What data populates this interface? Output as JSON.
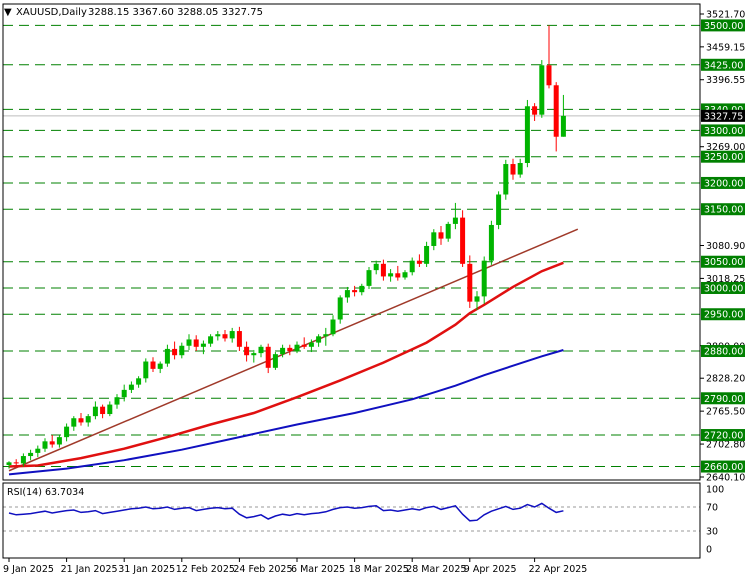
{
  "header": {
    "symbol": "XAUUSD,Daily",
    "ohlc": "3288.15 3367.60 3288.05 3327.75"
  },
  "colors": {
    "up": "#00b400",
    "down": "#ff0000",
    "ma_fast": "#e01010",
    "ma_slow": "#1010c0",
    "trend": "#a03a2a",
    "level": "#008000",
    "rsi": "#1010c0",
    "grid": "#000000",
    "current_price_bg": "#000000"
  },
  "chart_data": {
    "type": "candlestick",
    "y_range": [
      2640.1,
      3521.7
    ],
    "price_ticks": [
      {
        "value": 3521.7,
        "label": "3521.70"
      },
      {
        "value": 3459.15,
        "label": "3459.15"
      },
      {
        "value": 3396.55,
        "label": "3396.55"
      },
      {
        "value": 3269.0,
        "label": "3269.00"
      },
      {
        "value": 3080.9,
        "label": "3080.90"
      },
      {
        "value": 3018.25,
        "label": "3018.25"
      },
      {
        "value": 2890.0,
        "label": "2890.00"
      },
      {
        "value": 2828.2,
        "label": "2828.20"
      },
      {
        "value": 2765.5,
        "label": "2765.50"
      },
      {
        "value": 2702.8,
        "label": "2702.80"
      },
      {
        "value": 2640.1,
        "label": "2640.10"
      }
    ],
    "levels": [
      {
        "value": 3500,
        "label": "3500.00"
      },
      {
        "value": 3425,
        "label": "3425.00"
      },
      {
        "value": 3340,
        "label": "3340.00"
      },
      {
        "value": 3300,
        "label": "3300.00"
      },
      {
        "value": 3250,
        "label": "3250.00"
      },
      {
        "value": 3200,
        "label": "3200.00"
      },
      {
        "value": 3150,
        "label": "3150.00"
      },
      {
        "value": 3050,
        "label": "3050.00"
      },
      {
        "value": 3000,
        "label": "3000.00"
      },
      {
        "value": 2950,
        "label": "2950.00"
      },
      {
        "value": 2880,
        "label": "2880.00"
      },
      {
        "value": 2790,
        "label": "2790.00"
      },
      {
        "value": 2720,
        "label": "2720.00"
      },
      {
        "value": 2660,
        "label": "2660.00"
      }
    ],
    "current_price": {
      "value": 3327.75,
      "label": "3327.75"
    },
    "x_labels": [
      "9 Jan 2025",
      "21 Jan 2025",
      "31 Jan 2025",
      "12 Feb 2025",
      "24 Feb 2025",
      "6 Mar 2025",
      "18 Mar 2025",
      "28 Mar 2025",
      "9 Apr 2025",
      "22 Apr 2025"
    ],
    "x_label_index": [
      0,
      8,
      16,
      24,
      32,
      40,
      48,
      56,
      64,
      73
    ],
    "candles": [
      [
        2663,
        2670,
        2656,
        2668
      ],
      [
        2668,
        2674,
        2662,
        2666
      ],
      [
        2666,
        2685,
        2660,
        2680
      ],
      [
        2680,
        2692,
        2672,
        2686
      ],
      [
        2686,
        2700,
        2678,
        2694
      ],
      [
        2694,
        2714,
        2688,
        2708
      ],
      [
        2708,
        2720,
        2696,
        2702
      ],
      [
        2702,
        2720,
        2696,
        2716
      ],
      [
        2716,
        2742,
        2708,
        2736
      ],
      [
        2736,
        2756,
        2728,
        2752
      ],
      [
        2752,
        2762,
        2738,
        2744
      ],
      [
        2744,
        2760,
        2736,
        2756
      ],
      [
        2756,
        2784,
        2750,
        2774
      ],
      [
        2774,
        2778,
        2752,
        2760
      ],
      [
        2760,
        2784,
        2756,
        2778
      ],
      [
        2778,
        2798,
        2770,
        2792
      ],
      [
        2792,
        2816,
        2784,
        2806
      ],
      [
        2806,
        2822,
        2800,
        2816
      ],
      [
        2816,
        2832,
        2810,
        2828
      ],
      [
        2828,
        2866,
        2820,
        2860
      ],
      [
        2860,
        2868,
        2840,
        2846
      ],
      [
        2846,
        2860,
        2838,
        2856
      ],
      [
        2856,
        2892,
        2850,
        2884
      ],
      [
        2884,
        2898,
        2864,
        2872
      ],
      [
        2872,
        2896,
        2866,
        2890
      ],
      [
        2890,
        2912,
        2882,
        2902
      ],
      [
        2902,
        2910,
        2880,
        2888
      ],
      [
        2888,
        2900,
        2874,
        2894
      ],
      [
        2894,
        2912,
        2888,
        2908
      ],
      [
        2908,
        2918,
        2900,
        2912
      ],
      [
        2912,
        2920,
        2898,
        2904
      ],
      [
        2904,
        2924,
        2896,
        2918
      ],
      [
        2918,
        2926,
        2880,
        2888
      ],
      [
        2888,
        2898,
        2860,
        2872
      ],
      [
        2872,
        2882,
        2858,
        2876
      ],
      [
        2876,
        2892,
        2868,
        2888
      ],
      [
        2888,
        2894,
        2838,
        2848
      ],
      [
        2848,
        2878,
        2844,
        2874
      ],
      [
        2874,
        2892,
        2868,
        2886
      ],
      [
        2886,
        2892,
        2872,
        2880
      ],
      [
        2880,
        2898,
        2876,
        2892
      ],
      [
        2892,
        2906,
        2884,
        2888
      ],
      [
        2888,
        2902,
        2878,
        2896
      ],
      [
        2896,
        2912,
        2888,
        2908
      ],
      [
        2908,
        2924,
        2890,
        2912
      ],
      [
        2912,
        2948,
        2908,
        2940
      ],
      [
        2940,
        2986,
        2932,
        2982
      ],
      [
        2982,
        3002,
        2972,
        2996
      ],
      [
        2996,
        3004,
        2984,
        2992
      ],
      [
        2992,
        3008,
        2986,
        3004
      ],
      [
        3004,
        3040,
        2998,
        3034
      ],
      [
        3034,
        3052,
        3026,
        3046
      ],
      [
        3046,
        3054,
        3014,
        3022
      ],
      [
        3022,
        3036,
        3012,
        3028
      ],
      [
        3028,
        3042,
        3014,
        3020
      ],
      [
        3020,
        3034,
        3016,
        3030
      ],
      [
        3030,
        3058,
        3024,
        3052
      ],
      [
        3052,
        3064,
        3040,
        3046
      ],
      [
        3046,
        3088,
        3040,
        3080
      ],
      [
        3080,
        3112,
        3072,
        3106
      ],
      [
        3106,
        3118,
        3082,
        3094
      ],
      [
        3094,
        3126,
        3088,
        3122
      ],
      [
        3122,
        3162,
        3112,
        3134
      ],
      [
        3134,
        3148,
        3040,
        3046
      ],
      [
        3046,
        3062,
        2962,
        2974
      ],
      [
        2974,
        2994,
        2958,
        2984
      ],
      [
        2984,
        3060,
        2970,
        3052
      ],
      [
        3052,
        3128,
        3044,
        3120
      ],
      [
        3120,
        3184,
        3112,
        3178
      ],
      [
        3178,
        3244,
        3168,
        3236
      ],
      [
        3236,
        3246,
        3206,
        3216
      ],
      [
        3216,
        3246,
        3210,
        3238
      ],
      [
        3238,
        3358,
        3230,
        3346
      ],
      [
        3346,
        3352,
        3318,
        3330
      ],
      [
        3330,
        3434,
        3324,
        3424
      ],
      [
        3424,
        3500,
        3380,
        3386
      ],
      [
        3386,
        3392,
        3260,
        3288
      ],
      [
        3288,
        3367.6,
        3288.05,
        3327.75
      ]
    ],
    "ma_fast": [
      [
        0,
        2660
      ],
      [
        4,
        2662
      ],
      [
        10,
        2676
      ],
      [
        16,
        2694
      ],
      [
        22,
        2716
      ],
      [
        28,
        2740
      ],
      [
        34,
        2762
      ],
      [
        40,
        2792
      ],
      [
        46,
        2824
      ],
      [
        52,
        2858
      ],
      [
        58,
        2896
      ],
      [
        62,
        2930
      ],
      [
        64,
        2952
      ],
      [
        66,
        2968
      ],
      [
        70,
        3002
      ],
      [
        74,
        3032
      ],
      [
        77,
        3048
      ]
    ],
    "ma_slow": [
      [
        0,
        2645
      ],
      [
        8,
        2656
      ],
      [
        16,
        2672
      ],
      [
        24,
        2692
      ],
      [
        32,
        2716
      ],
      [
        40,
        2740
      ],
      [
        48,
        2762
      ],
      [
        56,
        2788
      ],
      [
        62,
        2814
      ],
      [
        66,
        2834
      ],
      [
        70,
        2852
      ],
      [
        74,
        2870
      ],
      [
        77,
        2882
      ]
    ],
    "trendline": [
      [
        0,
        2652
      ],
      [
        79,
        3112
      ]
    ],
    "rsi": {
      "label": "RSI(14) 63.7034",
      "levels": [
        {
          "value": 100,
          "label": "100"
        },
        {
          "value": 70,
          "label": "70"
        },
        {
          "value": 30,
          "label": "30"
        },
        {
          "value": 0,
          "label": "0"
        }
      ],
      "values": [
        60,
        57,
        58,
        59,
        61,
        63,
        60,
        62,
        64,
        65,
        61,
        62,
        64,
        59,
        61,
        63,
        65,
        67,
        68,
        70,
        67,
        68,
        70,
        66,
        68,
        69,
        64,
        66,
        68,
        69,
        67,
        68,
        58,
        52,
        54,
        57,
        50,
        55,
        58,
        56,
        59,
        57,
        59,
        60,
        62,
        66,
        69,
        70,
        68,
        69,
        71,
        72,
        64,
        65,
        63,
        65,
        67,
        65,
        69,
        71,
        66,
        69,
        72,
        58,
        47,
        48,
        57,
        63,
        67,
        71,
        66,
        68,
        74,
        70,
        76,
        68,
        61,
        63.7
      ]
    }
  }
}
